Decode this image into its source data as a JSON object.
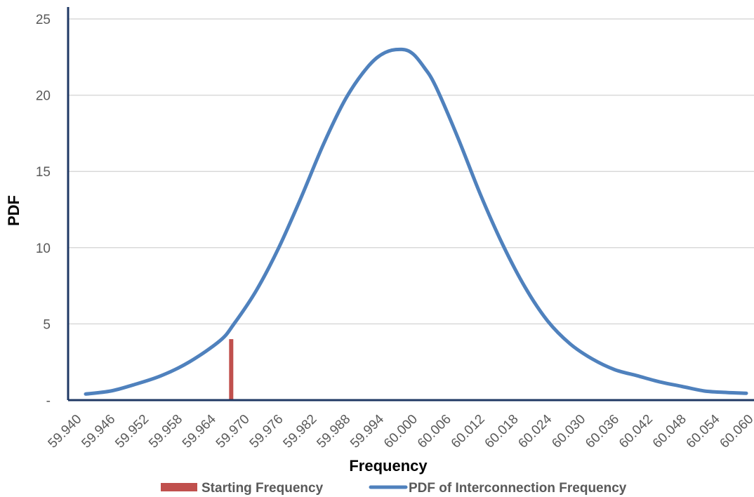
{
  "chart_data": {
    "type": "line",
    "xlabel": "Frequency",
    "ylabel": "PDF",
    "xlim": [
      59.94,
      60.06
    ],
    "ylim": [
      0,
      25
    ],
    "y_ticks": [
      {
        "value": 0,
        "label": "-"
      },
      {
        "value": 5,
        "label": "5"
      },
      {
        "value": 10,
        "label": "10"
      },
      {
        "value": 15,
        "label": "15"
      },
      {
        "value": 20,
        "label": "20"
      },
      {
        "value": 25,
        "label": "25"
      }
    ],
    "x_tick_labels": [
      "59.940",
      "59.946",
      "59.952",
      "59.958",
      "59.964",
      "59.970",
      "59.976",
      "59.982",
      "59.988",
      "59.994",
      "60.000",
      "60.006",
      "60.012",
      "60.018",
      "60.024",
      "60.030",
      "60.036",
      "60.042",
      "60.048",
      "60.054",
      "60.060"
    ],
    "grid": "horizontal",
    "legend": "bottom",
    "series": [
      {
        "name": "PDF of Interconnection Frequency",
        "kind": "line",
        "color": "#4f81bd",
        "x": [
          59.9415,
          59.946,
          59.95,
          59.955,
          59.96,
          59.9655,
          59.968,
          59.972,
          59.976,
          59.98,
          59.984,
          59.988,
          59.992,
          59.995,
          59.998,
          60.0,
          60.002,
          60.004,
          60.008,
          60.012,
          60.016,
          60.02,
          60.024,
          60.028,
          60.032,
          60.036,
          60.04,
          60.044,
          60.048,
          60.052,
          60.056,
          60.0595
        ],
        "y": [
          0.4,
          0.6,
          1.0,
          1.6,
          2.5,
          3.9,
          5.0,
          7.2,
          10.0,
          13.3,
          16.8,
          19.8,
          21.9,
          22.8,
          23.0,
          22.7,
          21.8,
          20.6,
          17.2,
          13.5,
          10.2,
          7.4,
          5.2,
          3.7,
          2.7,
          2.0,
          1.6,
          1.2,
          0.9,
          0.6,
          0.5,
          0.45
        ]
      },
      {
        "name": "Starting Frequency",
        "kind": "bar",
        "color": "#c0504d",
        "x": [
          59.9675
        ],
        "y": [
          4.0
        ]
      }
    ]
  }
}
